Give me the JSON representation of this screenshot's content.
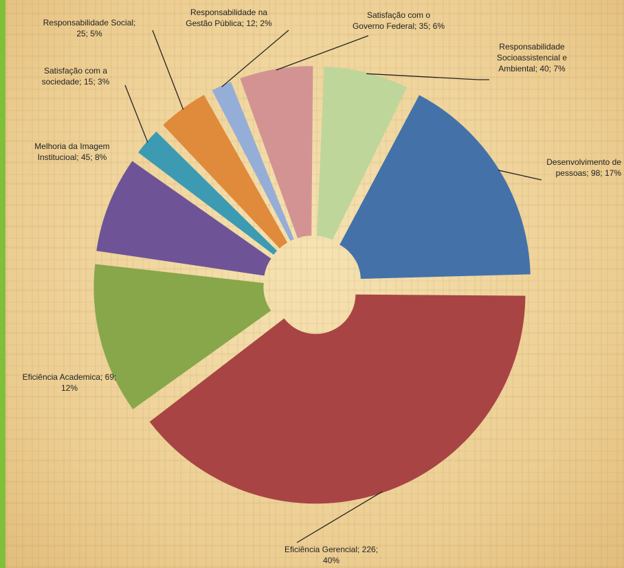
{
  "chart_data": {
    "type": "pie",
    "title": "",
    "exploded": true,
    "slices": [
      {
        "name": "Desenvolvimento de pessoas",
        "value": 98,
        "percent": "17%",
        "label": "Desenvolvimento de\npessoas; 98; 17%",
        "color": "#4472a8"
      },
      {
        "name": "Eficiência Gerencial",
        "value": 226,
        "percent": "40%",
        "label": "Eficiência Gerencial; 226;\n40%",
        "color": "#a84444"
      },
      {
        "name": "Eficiência Academica",
        "value": 69,
        "percent": "12%",
        "label": "Eficiência Academica; 69;\n12%",
        "color": "#87a74a"
      },
      {
        "name": "Melhoria da Imagem Institucioal",
        "value": 45,
        "percent": "8%",
        "label": "Melhoria da Imagem\nInstitucioal; 45; 8%",
        "color": "#6e5497"
      },
      {
        "name": "Satisfação com a sociedade",
        "value": 15,
        "percent": "3%",
        "label": "Satisfação com a\nsociedade; 15; 3%",
        "color": "#3c9bb3"
      },
      {
        "name": "Responsabilidade Social",
        "value": 25,
        "percent": "5%",
        "label": "Responsabilidade Social;\n25; 5%",
        "color": "#e08a3c"
      },
      {
        "name": "Responsabilidade na Gestão Pública",
        "value": 12,
        "percent": "2%",
        "label": "Responsabilidade na\nGestão Pública; 12; 2%",
        "color": "#94aed8"
      },
      {
        "name": "Satisfação com o Governo Federal",
        "value": 35,
        "percent": "6%",
        "label": "Satisfação com o\nGoverno Federal; 35; 6%",
        "color": "#d39393"
      },
      {
        "name": "Responsabilidade Socioassistencial e Ambiental",
        "value": 40,
        "percent": "7%",
        "label": "Responsabilidade\nSocioassistencial e\nAmbiental; 40; 7%",
        "color": "#bfd69b"
      }
    ]
  }
}
